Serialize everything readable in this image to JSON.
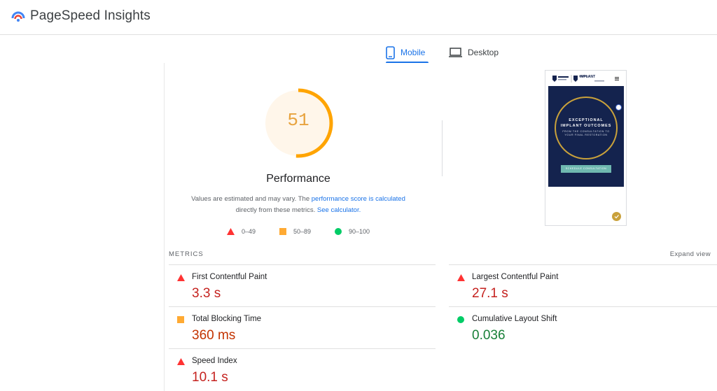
{
  "header": {
    "app_title": "PageSpeed Insights",
    "logo_icon": "pagespeed-logo-icon"
  },
  "tabs": {
    "mobile": {
      "label": "Mobile",
      "icon": "phone-icon",
      "selected": true
    },
    "desktop": {
      "label": "Desktop",
      "icon": "laptop-icon",
      "selected": false
    }
  },
  "score": {
    "value": "51",
    "fraction": 0.51,
    "category_title": "Performance",
    "color": "#ffa400",
    "desc_part1": "Values are estimated and may vary. The ",
    "desc_link1": "performance score is calculated",
    "desc_part2": " directly from these metrics. ",
    "desc_link2": "See calculator."
  },
  "legend": {
    "fail": {
      "label": "0–49",
      "color": "#ff3333",
      "icon": "triangle-icon"
    },
    "average": {
      "label": "50–89",
      "color": "#ffaa33",
      "icon": "square-icon"
    },
    "pass": {
      "label": "90–100",
      "color": "#00cc66",
      "icon": "circle-icon"
    }
  },
  "metrics": {
    "section_label": "METRICS",
    "expand_label": "Expand view",
    "items": [
      {
        "title": "First Contentful Paint",
        "value": "3.3 s",
        "rating": "fail"
      },
      {
        "title": "Largest Contentful Paint",
        "value": "27.1 s",
        "rating": "fail"
      },
      {
        "title": "Total Blocking Time",
        "value": "360 ms",
        "rating": "average"
      },
      {
        "title": "Cumulative Layout Shift",
        "value": "0.036",
        "rating": "pass"
      },
      {
        "title": "Speed Index",
        "value": "10.1 s",
        "rating": "fail"
      }
    ]
  },
  "thumbnail": {
    "hero_line1": "EXCEPTIONAL",
    "hero_line2": "IMPLANT OUTCOMES",
    "hero_sub1": "FROM THE CONSULTATION TO",
    "hero_sub2": "YOUR FINAL RESTORATION",
    "button_label": "SCHEDULE CONSULTATION",
    "brand_name": "IMPLANT",
    "colors": {
      "navy": "#14234e",
      "gold": "#c9a13b",
      "teal": "#6fb8b0"
    }
  }
}
